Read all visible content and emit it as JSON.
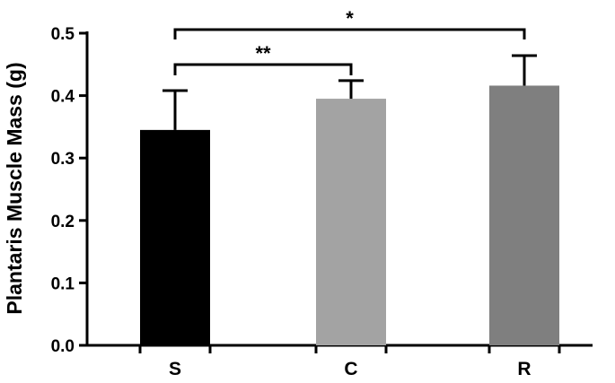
{
  "chart_data": {
    "type": "bar",
    "ylabel": "Plantaris Muscle Mass (g)",
    "xlabel": "",
    "categories": [
      "S",
      "C",
      "R"
    ],
    "values": [
      0.345,
      0.395,
      0.416
    ],
    "errors": [
      0.063,
      0.029,
      0.048
    ],
    "colors": [
      "#000000",
      "#a3a3a3",
      "#7f7f7f"
    ],
    "ylim": [
      0,
      0.5
    ],
    "yticks": [
      "0.0",
      "0.1",
      "0.2",
      "0.3",
      "0.4",
      "0.5"
    ],
    "grid": false,
    "legend": "none",
    "significance": [
      {
        "from": "S",
        "to": "C",
        "label": "**"
      },
      {
        "from": "S",
        "to": "R",
        "label": "*"
      }
    ]
  }
}
